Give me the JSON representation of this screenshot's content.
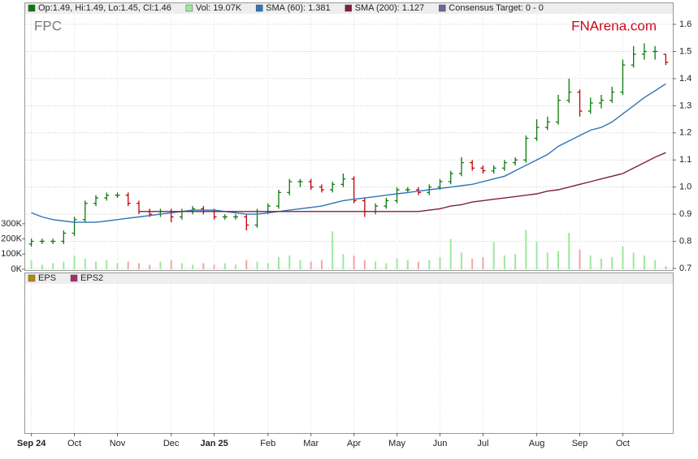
{
  "chart_data": [
    {
      "type": "ohlc",
      "ticker": "FPC",
      "watermark": "FNArena.com",
      "categories": [
        "Sep 24",
        null,
        null,
        null,
        "Oct",
        null,
        null,
        null,
        "Nov",
        null,
        null,
        null,
        null,
        "Dec",
        null,
        null,
        null,
        "Jan 25",
        null,
        null,
        null,
        null,
        "Feb",
        null,
        null,
        null,
        "Mar",
        null,
        null,
        null,
        "Apr",
        null,
        null,
        null,
        "May",
        null,
        null,
        null,
        "Jun",
        null,
        null,
        null,
        "Jul",
        null,
        null,
        null,
        null,
        "Aug",
        null,
        null,
        null,
        "Sep",
        null,
        null,
        null,
        "Oct",
        null,
        null,
        null,
        null
      ],
      "series": [
        {
          "name": "Op:1.49, Hi:1.49, Lo:1.45, Cl:1.46",
          "color": "#0b7a0b",
          "down_color": "#c00000",
          "open": [
            0.79,
            0.8,
            0.8,
            0.8,
            0.83,
            0.88,
            0.94,
            0.96,
            0.97,
            0.97,
            0.94,
            0.91,
            0.9,
            0.91,
            0.89,
            0.91,
            0.92,
            0.91,
            0.89,
            0.89,
            0.89,
            0.86,
            0.91,
            0.93,
            0.98,
            1.02,
            1.02,
            1.0,
            0.99,
            1.01,
            1.03,
            0.95,
            0.91,
            0.93,
            0.95,
            0.99,
            0.99,
            0.98,
            1.0,
            1.02,
            1.05,
            1.09,
            1.07,
            1.06,
            1.07,
            1.09,
            1.1,
            1.18,
            1.22,
            1.24,
            1.32,
            1.35,
            1.28,
            1.31,
            1.32,
            1.35,
            1.45,
            1.49,
            1.5,
            1.49
          ],
          "high": [
            0.81,
            0.81,
            0.81,
            0.84,
            0.89,
            0.95,
            0.97,
            0.98,
            0.98,
            0.98,
            0.95,
            0.92,
            0.92,
            0.92,
            0.92,
            0.93,
            0.93,
            0.92,
            0.9,
            0.9,
            0.9,
            0.92,
            0.94,
            0.99,
            1.03,
            1.03,
            1.03,
            1.01,
            1.02,
            1.05,
            1.04,
            0.96,
            0.94,
            0.96,
            1.0,
            1.0,
            1.0,
            1.01,
            1.03,
            1.06,
            1.11,
            1.1,
            1.08,
            1.08,
            1.1,
            1.11,
            1.19,
            1.25,
            1.26,
            1.34,
            1.4,
            1.36,
            1.33,
            1.34,
            1.37,
            1.47,
            1.52,
            1.53,
            1.52,
            1.49
          ],
          "low": [
            0.78,
            0.79,
            0.79,
            0.79,
            0.82,
            0.87,
            0.93,
            0.95,
            0.96,
            0.93,
            0.9,
            0.89,
            0.89,
            0.87,
            0.88,
            0.9,
            0.9,
            0.88,
            0.88,
            0.88,
            0.84,
            0.85,
            0.9,
            0.92,
            0.97,
            1.0,
            0.99,
            0.98,
            0.98,
            1.0,
            0.94,
            0.89,
            0.9,
            0.92,
            0.94,
            0.98,
            0.97,
            0.97,
            0.99,
            1.01,
            1.04,
            1.06,
            1.05,
            1.05,
            1.06,
            1.08,
            1.09,
            1.17,
            1.21,
            1.23,
            1.31,
            1.26,
            1.27,
            1.29,
            1.31,
            1.34,
            1.44,
            1.47,
            1.47,
            1.45
          ],
          "close": [
            0.8,
            0.8,
            0.8,
            0.83,
            0.88,
            0.94,
            0.96,
            0.97,
            0.97,
            0.94,
            0.91,
            0.9,
            0.91,
            0.89,
            0.91,
            0.92,
            0.91,
            0.89,
            0.89,
            0.89,
            0.86,
            0.91,
            0.93,
            0.98,
            1.02,
            1.02,
            1.0,
            0.99,
            1.01,
            1.03,
            0.95,
            0.91,
            0.93,
            0.95,
            0.99,
            0.99,
            0.98,
            1.0,
            1.02,
            1.05,
            1.09,
            1.07,
            1.06,
            1.07,
            1.09,
            1.1,
            1.18,
            1.22,
            1.24,
            1.32,
            1.35,
            1.28,
            1.31,
            1.32,
            1.35,
            1.45,
            1.49,
            1.5,
            1.5,
            1.46
          ]
        },
        {
          "name": "Vol: 19.07K",
          "color": "#9de89d",
          "down_color": "#f2a6a6",
          "axis": "y2",
          "values": [
            60000,
            30000,
            40000,
            50000,
            90000,
            70000,
            50000,
            60000,
            40000,
            50000,
            40000,
            30000,
            50000,
            60000,
            40000,
            30000,
            40000,
            30000,
            40000,
            30000,
            60000,
            50000,
            40000,
            80000,
            90000,
            60000,
            50000,
            60000,
            250000,
            100000,
            90000,
            60000,
            50000,
            40000,
            70000,
            60000,
            50000,
            60000,
            80000,
            200000,
            110000,
            70000,
            80000,
            180000,
            90000,
            100000,
            260000,
            180000,
            110000,
            120000,
            240000,
            130000,
            90000,
            70000,
            80000,
            150000,
            110000,
            90000,
            60000,
            19070
          ]
        },
        {
          "name": "SMA (60): 1.381",
          "color": "#2e75b6",
          "values": [
            0.905,
            0.89,
            0.88,
            0.875,
            0.87,
            0.87,
            0.87,
            0.875,
            0.88,
            0.885,
            0.89,
            0.895,
            0.9,
            0.905,
            0.91,
            0.915,
            0.915,
            0.915,
            0.91,
            0.905,
            0.9,
            0.9,
            0.905,
            0.91,
            0.915,
            0.92,
            0.925,
            0.93,
            0.94,
            0.95,
            0.955,
            0.96,
            0.965,
            0.97,
            0.975,
            0.98,
            0.985,
            0.99,
            0.995,
            1.0,
            1.005,
            1.01,
            1.02,
            1.03,
            1.04,
            1.06,
            1.08,
            1.1,
            1.12,
            1.15,
            1.17,
            1.19,
            1.21,
            1.22,
            1.24,
            1.27,
            1.3,
            1.33,
            1.355,
            1.381
          ]
        },
        {
          "name": "SMA (200): 1.127",
          "color": "#7f1f3f",
          "values": [
            null,
            null,
            null,
            null,
            null,
            null,
            null,
            null,
            null,
            null,
            0.91,
            0.91,
            0.91,
            0.91,
            0.91,
            0.91,
            0.91,
            0.91,
            0.91,
            0.91,
            0.91,
            0.91,
            0.91,
            0.91,
            0.91,
            0.91,
            0.91,
            0.91,
            0.91,
            0.91,
            0.91,
            0.91,
            0.91,
            0.91,
            0.91,
            0.91,
            0.91,
            0.915,
            0.92,
            0.93,
            0.935,
            0.945,
            0.95,
            0.955,
            0.96,
            0.965,
            0.97,
            0.975,
            0.985,
            0.99,
            1.0,
            1.01,
            1.02,
            1.03,
            1.04,
            1.05,
            1.07,
            1.09,
            1.11,
            1.127
          ]
        },
        {
          "name": "Consensus Target: 0 - 0",
          "color": "#6a6a9a"
        }
      ],
      "ylim": [
        0.697,
        1.636
      ],
      "yticks": [
        0.7,
        0.8,
        0.9,
        {
          "value": 1,
          "label": "1.0"
        },
        1.1,
        1.2,
        1.3,
        1.4,
        1.5,
        1.6
      ],
      "y2lim": [
        0,
        1680000
      ],
      "y2ticks": [
        {
          "value": 0,
          "label": "0K"
        },
        {
          "value": 100000,
          "label": "100K"
        },
        {
          "value": 200000,
          "label": "200K"
        },
        {
          "value": 300000,
          "label": "300K"
        }
      ],
      "grid": true
    },
    {
      "type": "line",
      "series": [
        {
          "name": "EPS",
          "color": "#b8860b"
        },
        {
          "name": "EPS2",
          "color": "#a0306a"
        }
      ]
    }
  ]
}
